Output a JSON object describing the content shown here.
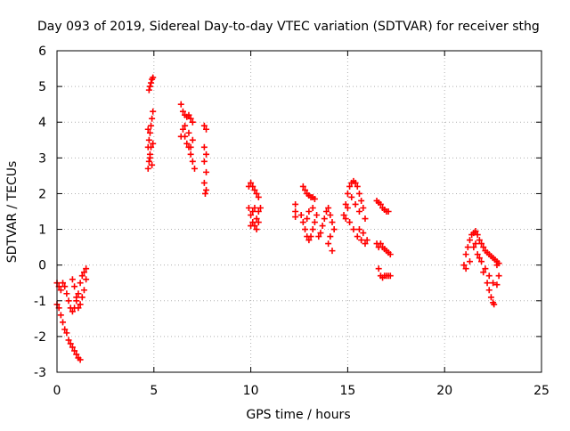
{
  "chart_data": {
    "type": "scatter",
    "title": "Day 093 of 2019, Sidereal Day-to-day VTEC variation (SDTVAR) for receiver sthg",
    "xlabel": "GPS time / hours",
    "ylabel": "SDTVAR / TECUs",
    "xlim": [
      0,
      25
    ],
    "ylim": [
      -3,
      6
    ],
    "xticks": [
      0,
      5,
      10,
      15,
      20,
      25
    ],
    "yticks": [
      -3,
      -2,
      -1,
      0,
      1,
      2,
      3,
      4,
      5,
      6
    ],
    "grid": true,
    "marker": "+",
    "color": "#ff0000",
    "series": [
      {
        "points": [
          [
            0.0,
            -0.5
          ],
          [
            0.1,
            -0.6
          ],
          [
            0.2,
            -0.7
          ],
          [
            0.3,
            -0.5
          ],
          [
            0.4,
            -0.6
          ],
          [
            0.5,
            -0.8
          ],
          [
            0.6,
            -1.0
          ],
          [
            0.7,
            -1.2
          ],
          [
            0.8,
            -1.3
          ],
          [
            0.9,
            -1.2
          ],
          [
            1.0,
            -1.0
          ],
          [
            1.1,
            -0.8
          ],
          [
            1.2,
            -0.5
          ],
          [
            1.3,
            -0.3
          ],
          [
            1.4,
            -0.2
          ],
          [
            1.5,
            -0.1
          ],
          [
            1.5,
            -0.4
          ],
          [
            1.4,
            -0.7
          ],
          [
            1.3,
            -0.9
          ],
          [
            1.2,
            -1.1
          ],
          [
            1.1,
            -1.2
          ],
          [
            1.0,
            -0.9
          ],
          [
            0.9,
            -0.6
          ],
          [
            0.8,
            -0.4
          ]
        ]
      },
      {
        "points": [
          [
            0.0,
            -1.1
          ],
          [
            0.1,
            -1.2
          ],
          [
            0.2,
            -1.4
          ],
          [
            0.3,
            -1.6
          ],
          [
            0.4,
            -1.8
          ],
          [
            0.5,
            -1.9
          ],
          [
            0.6,
            -2.1
          ],
          [
            0.7,
            -2.2
          ],
          [
            0.8,
            -2.3
          ],
          [
            0.9,
            -2.4
          ],
          [
            1.0,
            -2.5
          ],
          [
            1.1,
            -2.6
          ],
          [
            1.2,
            -2.65
          ]
        ]
      },
      {
        "points": [
          [
            4.7,
            2.7
          ],
          [
            4.75,
            2.9
          ],
          [
            4.8,
            3.1
          ],
          [
            4.85,
            3.3
          ],
          [
            4.75,
            3.5
          ],
          [
            4.8,
            3.7
          ],
          [
            4.85,
            3.9
          ],
          [
            4.9,
            4.1
          ],
          [
            4.95,
            4.3
          ],
          [
            4.75,
            4.9
          ],
          [
            4.8,
            5.0
          ],
          [
            4.85,
            5.1
          ],
          [
            4.9,
            5.2
          ],
          [
            4.95,
            5.25
          ],
          [
            4.8,
            3.0
          ],
          [
            4.9,
            2.8
          ],
          [
            4.7,
            3.3
          ],
          [
            4.95,
            3.4
          ],
          [
            4.7,
            3.8
          ]
        ]
      },
      {
        "points": [
          [
            6.4,
            4.5
          ],
          [
            6.5,
            4.3
          ],
          [
            6.6,
            4.2
          ],
          [
            6.7,
            4.15
          ],
          [
            6.8,
            4.2
          ],
          [
            6.9,
            4.1
          ],
          [
            7.0,
            4.0
          ],
          [
            6.5,
            3.8
          ],
          [
            6.6,
            3.6
          ],
          [
            6.7,
            3.4
          ],
          [
            6.8,
            3.3
          ],
          [
            6.9,
            3.1
          ],
          [
            7.0,
            2.9
          ],
          [
            7.1,
            2.7
          ],
          [
            6.4,
            3.6
          ],
          [
            6.6,
            3.9
          ],
          [
            6.8,
            3.7
          ],
          [
            7.0,
            3.5
          ],
          [
            6.9,
            3.3
          ]
        ]
      },
      {
        "points": [
          [
            7.6,
            3.9
          ],
          [
            7.7,
            3.8
          ],
          [
            7.6,
            3.3
          ],
          [
            7.7,
            3.1
          ],
          [
            7.6,
            2.9
          ],
          [
            7.7,
            2.6
          ],
          [
            7.6,
            2.3
          ],
          [
            7.7,
            2.1
          ],
          [
            7.65,
            2.0
          ]
        ]
      },
      {
        "points": [
          [
            9.9,
            2.2
          ],
          [
            10.0,
            2.3
          ],
          [
            10.1,
            2.2
          ],
          [
            10.2,
            2.1
          ],
          [
            10.3,
            2.0
          ],
          [
            10.4,
            1.9
          ],
          [
            9.9,
            1.6
          ],
          [
            10.0,
            1.4
          ],
          [
            10.1,
            1.2
          ],
          [
            10.2,
            1.1
          ],
          [
            10.3,
            1.3
          ],
          [
            10.4,
            1.5
          ],
          [
            10.5,
            1.6
          ],
          [
            10.0,
            1.1
          ],
          [
            10.1,
            1.5
          ],
          [
            10.2,
            1.6
          ],
          [
            10.3,
            1.0
          ],
          [
            10.4,
            1.2
          ]
        ]
      },
      {
        "points": [
          [
            12.3,
            1.7
          ],
          [
            12.3,
            1.5
          ],
          [
            12.3,
            1.35
          ]
        ]
      },
      {
        "points": [
          [
            12.7,
            2.2
          ],
          [
            12.8,
            2.1
          ],
          [
            12.9,
            2.0
          ],
          [
            13.0,
            1.95
          ],
          [
            13.1,
            1.9
          ],
          [
            13.2,
            1.9
          ],
          [
            13.3,
            1.85
          ],
          [
            12.6,
            1.4
          ],
          [
            12.7,
            1.2
          ],
          [
            12.8,
            1.0
          ],
          [
            12.9,
            0.8
          ],
          [
            13.0,
            0.7
          ],
          [
            13.1,
            0.8
          ],
          [
            13.2,
            1.0
          ],
          [
            13.3,
            1.2
          ],
          [
            13.4,
            1.4
          ],
          [
            13.2,
            1.6
          ],
          [
            13.0,
            1.5
          ],
          [
            12.9,
            1.3
          ],
          [
            13.5,
            0.8
          ],
          [
            13.6,
            0.9
          ],
          [
            13.7,
            1.1
          ],
          [
            13.8,
            1.3
          ],
          [
            13.9,
            1.5
          ],
          [
            14.0,
            1.6
          ],
          [
            14.1,
            1.4
          ],
          [
            14.2,
            1.2
          ],
          [
            14.3,
            1.0
          ],
          [
            14.1,
            0.8
          ],
          [
            14.0,
            0.6
          ],
          [
            14.2,
            0.4
          ]
        ]
      },
      {
        "points": [
          [
            14.8,
            1.4
          ],
          [
            14.9,
            1.7
          ],
          [
            15.0,
            2.0
          ],
          [
            15.1,
            2.2
          ],
          [
            15.2,
            2.3
          ],
          [
            15.3,
            2.35
          ],
          [
            15.4,
            2.3
          ],
          [
            15.5,
            2.2
          ],
          [
            15.6,
            2.0
          ],
          [
            15.7,
            1.8
          ],
          [
            15.8,
            1.6
          ],
          [
            15.9,
            1.3
          ],
          [
            15.6,
            1.5
          ],
          [
            15.4,
            1.7
          ],
          [
            15.2,
            1.9
          ],
          [
            15.0,
            1.6
          ],
          [
            14.9,
            1.3
          ],
          [
            15.1,
            1.2
          ],
          [
            15.3,
            1.0
          ],
          [
            15.5,
            0.8
          ],
          [
            15.7,
            0.7
          ],
          [
            15.9,
            0.6
          ],
          [
            16.0,
            0.7
          ],
          [
            15.8,
            0.9
          ],
          [
            15.6,
            1.0
          ]
        ]
      },
      {
        "points": [
          [
            16.5,
            1.8
          ],
          [
            16.6,
            1.75
          ],
          [
            16.7,
            1.7
          ],
          [
            16.8,
            1.6
          ],
          [
            16.9,
            1.55
          ],
          [
            17.0,
            1.5
          ],
          [
            17.1,
            1.5
          ],
          [
            16.5,
            0.6
          ],
          [
            16.6,
            0.5
          ],
          [
            16.7,
            0.6
          ],
          [
            16.8,
            0.5
          ],
          [
            16.9,
            0.45
          ],
          [
            17.0,
            0.4
          ],
          [
            17.1,
            0.35
          ],
          [
            17.2,
            0.3
          ],
          [
            16.6,
            -0.1
          ],
          [
            16.7,
            -0.3
          ],
          [
            16.8,
            -0.35
          ],
          [
            16.9,
            -0.3
          ],
          [
            17.0,
            -0.3
          ],
          [
            17.1,
            -0.3
          ],
          [
            17.2,
            -0.3
          ]
        ]
      },
      {
        "points": [
          [
            21.0,
            0.0
          ],
          [
            21.1,
            0.3
          ],
          [
            21.2,
            0.5
          ],
          [
            21.3,
            0.7
          ],
          [
            21.4,
            0.85
          ],
          [
            21.5,
            0.9
          ],
          [
            21.6,
            0.95
          ],
          [
            21.7,
            0.85
          ],
          [
            21.8,
            0.7
          ],
          [
            21.9,
            0.6
          ],
          [
            22.0,
            0.5
          ],
          [
            22.1,
            0.4
          ],
          [
            22.2,
            0.35
          ],
          [
            22.3,
            0.3
          ],
          [
            22.4,
            0.25
          ],
          [
            22.5,
            0.2
          ],
          [
            22.6,
            0.15
          ],
          [
            22.7,
            0.1
          ],
          [
            22.8,
            0.05
          ],
          [
            21.1,
            -0.1
          ],
          [
            21.3,
            0.1
          ],
          [
            21.5,
            0.5
          ],
          [
            21.7,
            0.3
          ],
          [
            21.9,
            0.1
          ],
          [
            22.1,
            -0.1
          ],
          [
            22.3,
            -0.3
          ],
          [
            22.5,
            -0.5
          ],
          [
            22.7,
            -0.55
          ],
          [
            22.8,
            -0.3
          ],
          [
            22.7,
            0.0
          ],
          [
            21.6,
            0.6
          ],
          [
            21.8,
            0.2
          ],
          [
            22.0,
            -0.2
          ],
          [
            22.2,
            -0.5
          ],
          [
            22.3,
            -0.7
          ],
          [
            22.4,
            -0.9
          ],
          [
            22.5,
            -1.05
          ],
          [
            22.55,
            -1.1
          ]
        ]
      }
    ]
  }
}
